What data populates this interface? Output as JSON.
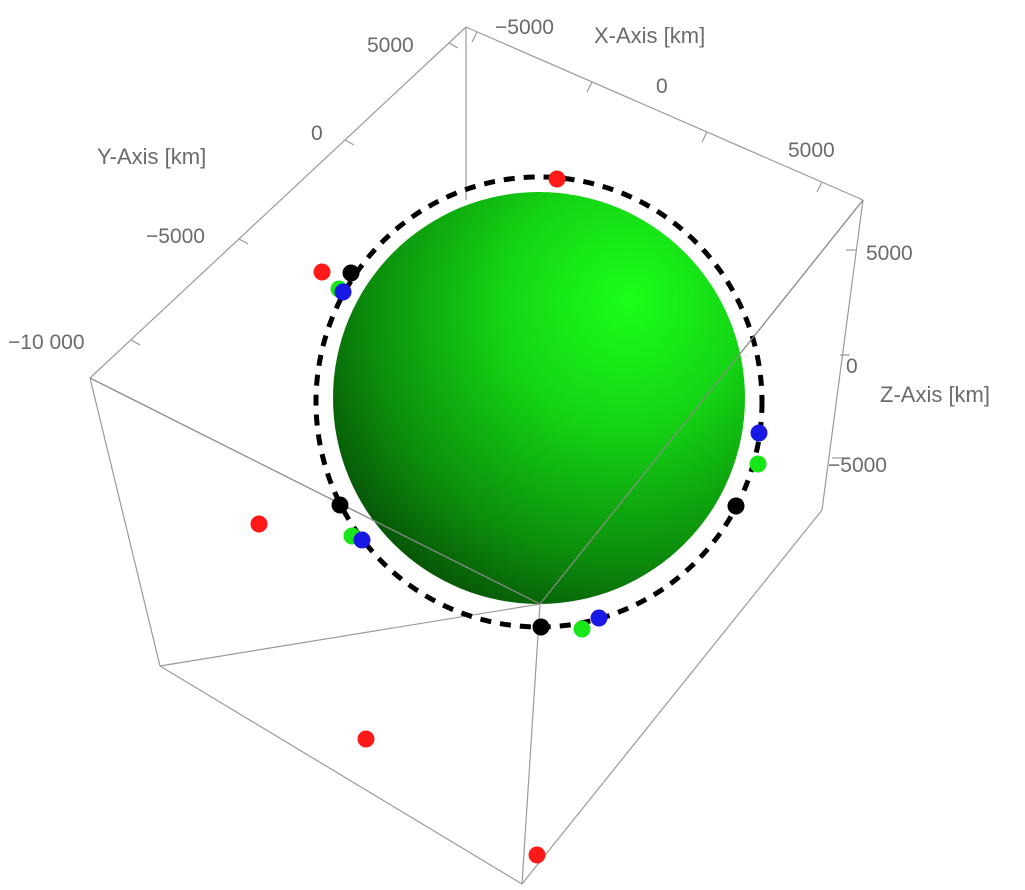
{
  "chart_data": {
    "type": "scatter",
    "title": "",
    "axes": {
      "x": {
        "label": "X-Axis [km]",
        "ticks": [
          "−5000",
          "0",
          "5000"
        ]
      },
      "y": {
        "label": "Y-Axis [km]",
        "ticks": [
          "5000",
          "0",
          "−5000",
          "−10 000"
        ]
      },
      "z": {
        "label": "Z-Axis [km]",
        "ticks": [
          "5000",
          "0",
          "−5000"
        ]
      }
    },
    "central_body": {
      "shape": "sphere",
      "color": "#1fd11f"
    },
    "orbit": {
      "style": "dashed",
      "color": "#000000"
    },
    "marker_colors": {
      "red": "#ff1a1a",
      "black": "#000000",
      "green": "#19e619",
      "blue": "#1919e6"
    },
    "markers": [
      {
        "color": "red",
        "count": 7
      },
      {
        "color": "black",
        "count": 5
      },
      {
        "color": "green",
        "count": 4
      },
      {
        "color": "blue",
        "count": 4
      }
    ],
    "grid": false,
    "legend": "none"
  }
}
